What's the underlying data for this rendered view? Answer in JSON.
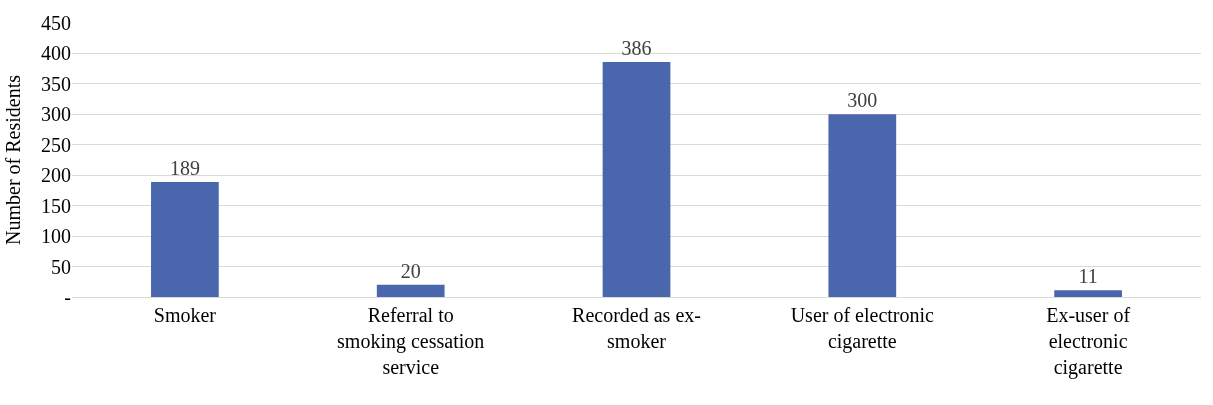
{
  "chart_data": {
    "type": "bar",
    "ylabel": "Number of Residents",
    "categories": [
      "Smoker",
      "Referral to smoking cessation service",
      "Recorded as ex-smoker",
      "User of electronic cigarette",
      "Ex-user of electronic cigarette"
    ],
    "values": [
      189,
      20,
      386,
      300,
      11
    ],
    "color": "#4a66ac",
    "ylim": [
      0,
      450
    ],
    "yticks": [
      {
        "value": 0,
        "label": "-"
      },
      50,
      100,
      150,
      200,
      250,
      300,
      350,
      400,
      450
    ],
    "grid": "y",
    "data_labels": true
  }
}
